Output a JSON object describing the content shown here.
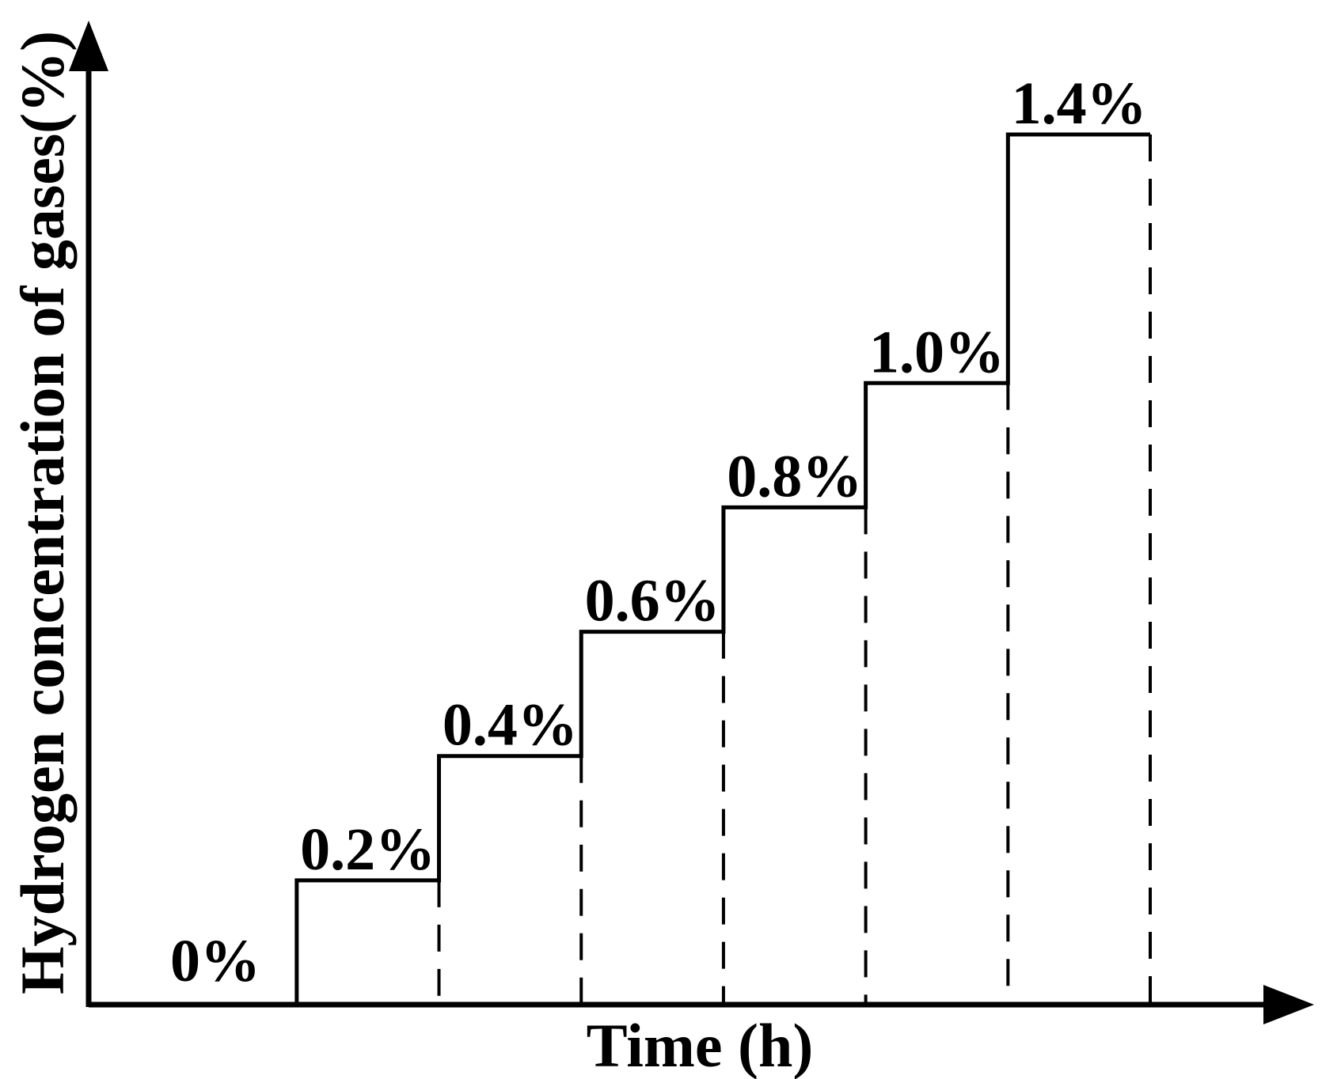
{
  "chart_data": {
    "type": "line",
    "title": "",
    "xlabel": "Time (h)",
    "ylabel": "Hydrogen concentration of gases(%)",
    "xlim": [
      0,
      7
    ],
    "ylim": [
      0,
      1.4
    ],
    "line_style": "step",
    "series": [
      {
        "values": [
          0,
          0.2,
          0.4,
          0.6,
          0.8,
          1.0,
          1.4
        ],
        "labels": [
          "0%",
          "0.2%",
          "0.4%",
          "0.6%",
          "0.8%",
          "1.0%",
          "1.4%"
        ]
      }
    ],
    "stage_boundaries": "dashed",
    "grid": false,
    "legend": "none",
    "colors": {
      "line": "#000000",
      "background": "#ffffff"
    }
  }
}
